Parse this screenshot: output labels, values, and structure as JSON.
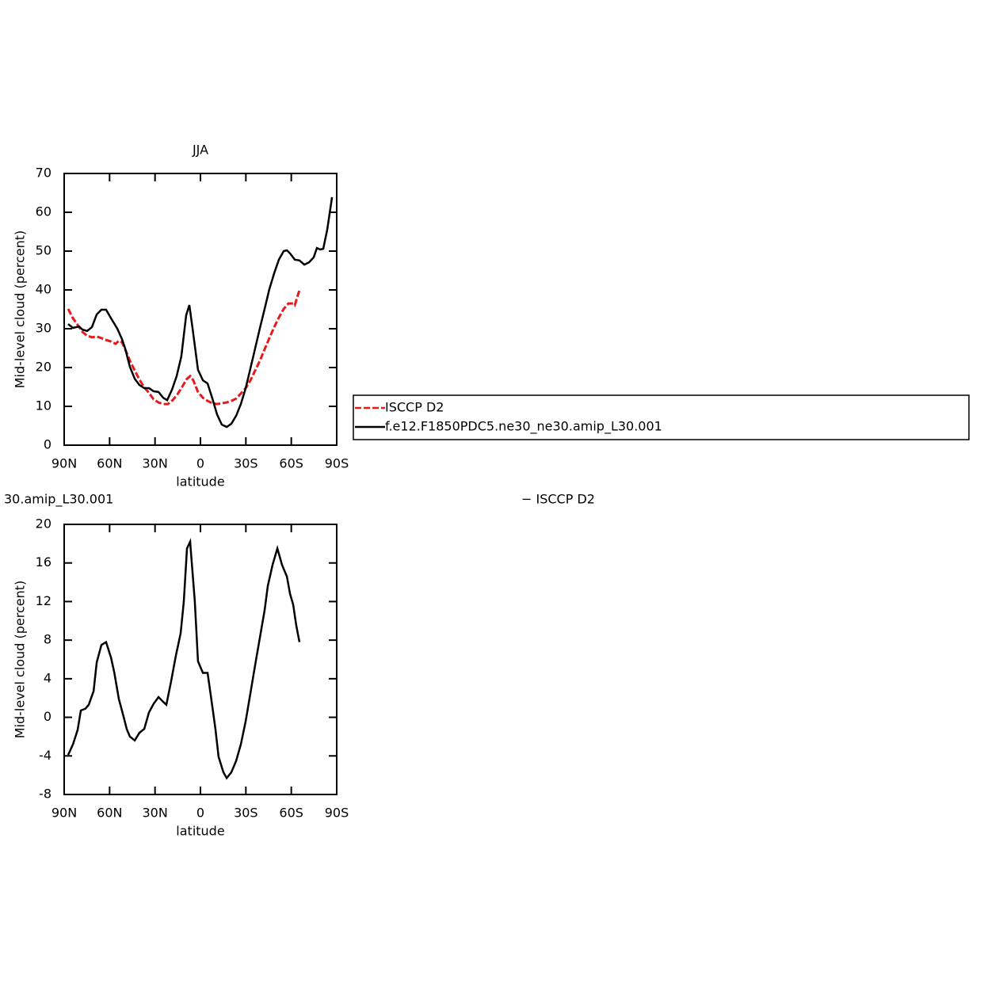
{
  "chart_data": [
    {
      "type": "line",
      "title": "JJA",
      "xlabel": "latitude",
      "ylabel": "Mid-level cloud (percent)",
      "xlim": [
        90,
        -90
      ],
      "ylim": [
        0,
        70
      ],
      "xticks": [
        {
          "value": 90,
          "label": "90N"
        },
        {
          "value": 60,
          "label": "60N"
        },
        {
          "value": 30,
          "label": "30N"
        },
        0,
        {
          "value": -30,
          "label": "30S"
        },
        {
          "value": -60,
          "label": "60S"
        },
        {
          "value": -90,
          "label": "90S"
        }
      ],
      "yticks": [
        0,
        10,
        20,
        30,
        40,
        50,
        60,
        70
      ],
      "legend": "right",
      "series": [
        {
          "name": "ISCCP D2",
          "color": "#e41a1c",
          "style": "dashed",
          "x": [
            87.4,
            84.2,
            81.1,
            78.0,
            74.8,
            71.7,
            68.5,
            65.4,
            62.3,
            59.1,
            56.0,
            53.9,
            51.8,
            49.7,
            46.6,
            43.4,
            40.3,
            37.1,
            34.0,
            30.9,
            27.7,
            24.6,
            21.5,
            18.3,
            15.2,
            12.0,
            8.9,
            6.8,
            4.7,
            1.6,
            -1.6,
            -4.7,
            -7.9,
            -11.0,
            -14.1,
            -17.3,
            -20.4,
            -23.6,
            -26.7,
            -29.9,
            -33.0,
            -36.1,
            -39.3,
            -42.4,
            -45.5,
            -48.7,
            -51.8,
            -55.0,
            -58.1,
            -61.2,
            -62.3,
            -65.4
          ],
          "values": [
            35.1,
            32.7,
            31.0,
            29.2,
            28.2,
            27.8,
            28.0,
            27.6,
            27.1,
            26.7,
            26.1,
            26.9,
            26.5,
            24.7,
            21.8,
            19.2,
            16.9,
            14.9,
            13.5,
            11.8,
            11.0,
            10.6,
            10.6,
            11.6,
            13.1,
            15.1,
            17.1,
            17.8,
            16.7,
            13.7,
            12.2,
            11.4,
            10.8,
            10.6,
            10.8,
            11.0,
            11.4,
            12.0,
            13.3,
            14.7,
            16.7,
            19.2,
            21.8,
            24.7,
            27.6,
            30.4,
            32.9,
            35.1,
            36.5,
            36.5,
            36.1,
            40.0
          ]
        },
        {
          "name": "f.e12.F1850PDC5.ne30_ne30.amip_L30.001",
          "color": "#000000",
          "style": "solid",
          "x": [
            87.4,
            84.2,
            80.1,
            78.0,
            74.8,
            71.7,
            68.5,
            65.4,
            62.3,
            59.1,
            54.9,
            51.8,
            49.7,
            46.6,
            43.4,
            40.3,
            37.1,
            34.0,
            30.9,
            27.7,
            24.6,
            22.0,
            18.8,
            15.7,
            12.6,
            9.4,
            7.3,
            5.2,
            1.6,
            -1.6,
            -4.7,
            -7.9,
            -11.0,
            -14.1,
            -17.3,
            -20.4,
            -23.6,
            -26.7,
            -29.9,
            -33.0,
            -36.1,
            -39.3,
            -42.4,
            -45.5,
            -48.7,
            -51.8,
            -55.0,
            -57.1,
            -59.2,
            -62.3,
            -65.4,
            -68.6,
            -71.7,
            -74.8,
            -76.9,
            -79.0,
            -81.1,
            -83.7,
            -86.9
          ],
          "values": [
            31.2,
            30.2,
            30.6,
            29.8,
            29.4,
            30.4,
            33.7,
            34.9,
            34.9,
            32.7,
            30.0,
            27.3,
            24.9,
            20.2,
            17.1,
            15.5,
            14.7,
            14.7,
            13.9,
            13.7,
            12.2,
            11.6,
            14.3,
            17.8,
            22.9,
            33.5,
            36.1,
            30.0,
            19.4,
            16.7,
            15.9,
            12.0,
            7.9,
            5.3,
            4.7,
            5.5,
            7.6,
            10.6,
            14.7,
            19.8,
            24.9,
            30.2,
            35.1,
            40.2,
            44.3,
            47.8,
            50.0,
            50.2,
            49.4,
            47.8,
            47.6,
            46.5,
            47.1,
            48.4,
            50.8,
            50.4,
            50.6,
            55.5,
            63.9
          ]
        }
      ]
    },
    {
      "type": "line",
      "title_left": "30.amip_L30.001",
      "title_right": "− ISCCP D2",
      "xlabel": "latitude",
      "ylabel": "Mid-level cloud (percent)",
      "xlim": [
        90,
        -90
      ],
      "ylim": [
        -8,
        20
      ],
      "xticks": [
        {
          "value": 90,
          "label": "90N"
        },
        {
          "value": 60,
          "label": "60N"
        },
        {
          "value": 30,
          "label": "30N"
        },
        0,
        {
          "value": -30,
          "label": "30S"
        },
        {
          "value": -60,
          "label": "60S"
        },
        {
          "value": -90,
          "label": "90S"
        }
      ],
      "yticks": [
        -8,
        -4,
        0,
        4,
        8,
        12,
        16,
        20
      ],
      "series": [
        {
          "color": "#000000",
          "style": "solid",
          "x": [
            87.4,
            84.2,
            81.1,
            79.0,
            75.9,
            73.8,
            70.6,
            68.5,
            65.4,
            62.3,
            59.1,
            57.0,
            53.9,
            50.8,
            48.7,
            46.6,
            43.4,
            40.3,
            37.1,
            34.0,
            30.9,
            27.7,
            24.6,
            22.5,
            19.4,
            16.2,
            13.1,
            11.0,
            8.9,
            6.8,
            3.7,
            1.6,
            -1.6,
            -4.7,
            -6.8,
            -9.9,
            -12.0,
            -15.2,
            -17.3,
            -20.4,
            -23.6,
            -26.7,
            -29.9,
            -33.0,
            -36.1,
            -39.3,
            -42.4,
            -44.5,
            -47.6,
            -50.8,
            -53.9,
            -57.1,
            -59.2,
            -61.2,
            -63.3,
            -65.4
          ],
          "values": [
            -3.9,
            -2.8,
            -1.3,
            0.7,
            0.9,
            1.3,
            2.7,
            5.7,
            7.5,
            7.8,
            6.2,
            4.7,
            1.9,
            0.1,
            -1.2,
            -2.0,
            -2.4,
            -1.6,
            -1.2,
            0.5,
            1.4,
            2.1,
            1.6,
            1.3,
            3.7,
            6.4,
            8.7,
            12.0,
            17.5,
            18.2,
            12.0,
            5.8,
            4.6,
            4.6,
            2.3,
            -1.2,
            -4.1,
            -5.7,
            -6.3,
            -5.7,
            -4.5,
            -2.8,
            -0.4,
            2.5,
            5.4,
            8.3,
            11.1,
            13.6,
            15.8,
            17.5,
            15.8,
            14.6,
            12.8,
            11.7,
            9.5,
            7.8
          ]
        }
      ]
    }
  ]
}
